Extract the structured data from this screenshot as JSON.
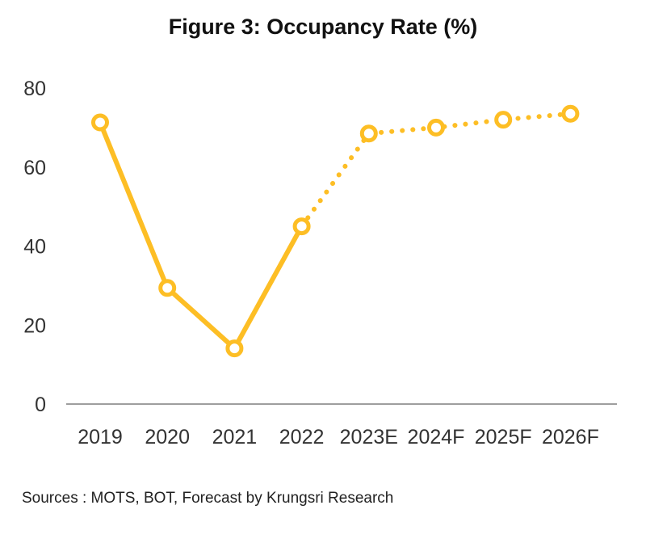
{
  "chart_data": {
    "type": "line",
    "title": "Figure 3: Occupancy Rate (%)",
    "categories": [
      "2019",
      "2020",
      "2021",
      "2022",
      "2023E",
      "2024F",
      "2025F",
      "2026F"
    ],
    "values": [
      71.3,
      29.4,
      14.1,
      45.0,
      68.5,
      70.0,
      72.0,
      73.5
    ],
    "actual_through_index": 3,
    "ylim": [
      0,
      80
    ],
    "yticks": [
      "0",
      "20",
      "40",
      "60",
      "80"
    ],
    "grid": false,
    "line_color": "#FDBE25",
    "styles": {
      "actual": "solid",
      "forecast": "dotted"
    }
  },
  "source_note": "Sources : MOTS,  BOT,  Forecast by Krungsri Research"
}
